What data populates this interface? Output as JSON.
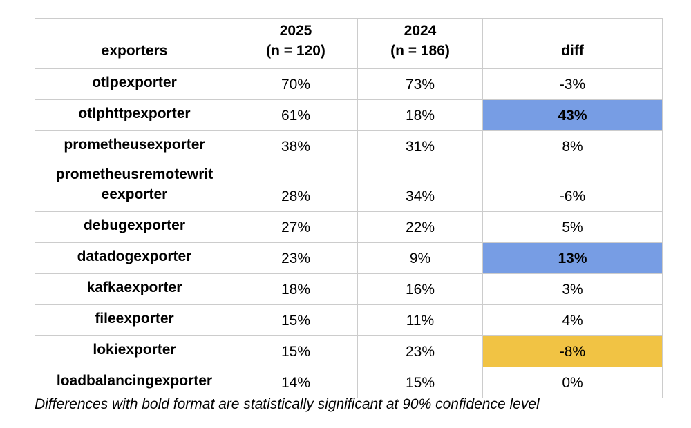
{
  "chart_data": {
    "type": "table",
    "title": "",
    "columns": [
      {
        "label": "exporters"
      },
      {
        "label": "2025\n(n = 120)"
      },
      {
        "label": "2024\n(n = 186)"
      },
      {
        "label": "diff"
      }
    ],
    "rows": [
      {
        "name": "otlpexporter",
        "v2025": "70%",
        "v2024": "73%",
        "diff": "-3%",
        "highlight": null,
        "diff_bold": false,
        "tall": false
      },
      {
        "name": "otlphttpexporter",
        "v2025": "61%",
        "v2024": "18%",
        "diff": "43%",
        "highlight": "blue",
        "diff_bold": true,
        "tall": false
      },
      {
        "name": "prometheusexporter",
        "v2025": "38%",
        "v2024": "31%",
        "diff": "8%",
        "highlight": null,
        "diff_bold": false,
        "tall": false
      },
      {
        "name": "prometheusremotewrit\neexporter",
        "v2025": "28%",
        "v2024": "34%",
        "diff": "-6%",
        "highlight": null,
        "diff_bold": false,
        "tall": true
      },
      {
        "name": "debugexporter",
        "v2025": "27%",
        "v2024": "22%",
        "diff": "5%",
        "highlight": null,
        "diff_bold": false,
        "tall": false
      },
      {
        "name": "datadogexporter",
        "v2025": "23%",
        "v2024": "9%",
        "diff": "13%",
        "highlight": "blue",
        "diff_bold": true,
        "tall": false
      },
      {
        "name": "kafkaexporter",
        "v2025": "18%",
        "v2024": "16%",
        "diff": "3%",
        "highlight": null,
        "diff_bold": false,
        "tall": false
      },
      {
        "name": "fileexporter",
        "v2025": "15%",
        "v2024": "11%",
        "diff": "4%",
        "highlight": null,
        "diff_bold": false,
        "tall": false
      },
      {
        "name": "lokiexporter",
        "v2025": "15%",
        "v2024": "23%",
        "diff": "-8%",
        "highlight": "orange",
        "diff_bold": false,
        "tall": false
      },
      {
        "name": "loadbalancingexporter",
        "v2025": "14%",
        "v2024": "15%",
        "diff": "0%",
        "highlight": null,
        "diff_bold": false,
        "tall": false
      }
    ],
    "footnote": "Differences with bold format are statistically significant at 90% confidence level",
    "layout": {
      "grid": true,
      "header_bold": true,
      "value_align": "center"
    }
  },
  "colors": {
    "highlight_positive": "#779de4",
    "highlight_negative": "#f1c344",
    "border": "#cccccc",
    "text": "#000000",
    "background": "#ffffff"
  }
}
